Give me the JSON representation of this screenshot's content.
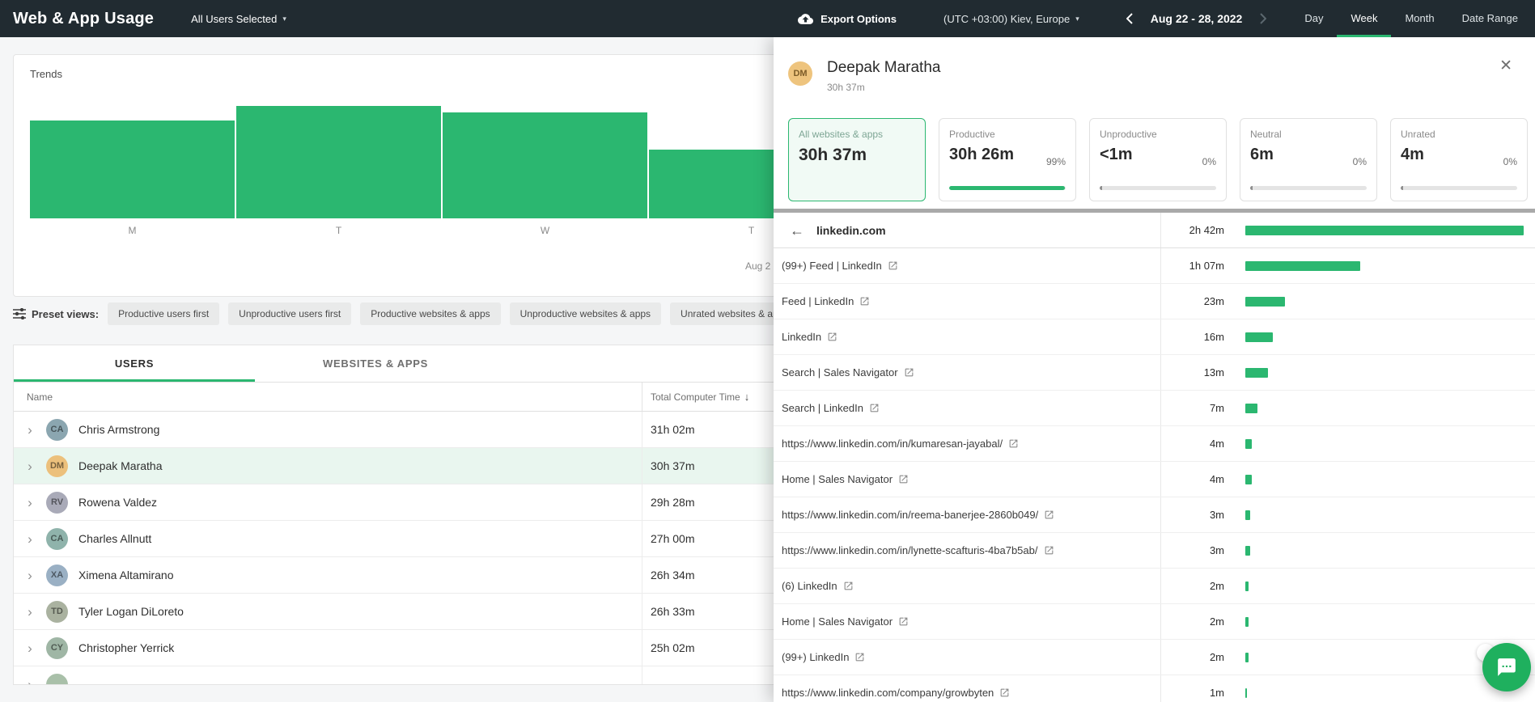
{
  "colors": {
    "accent_green": "#2bb770",
    "topbar_bg": "#212b31",
    "selected_row_bg": "#e9f6ef"
  },
  "topbar": {
    "title": "Web & App Usage",
    "users_dropdown": "All Users Selected",
    "export_label": "Export Options",
    "timezone": "(UTC +03:00) Kiev, Europe",
    "date_range": "Aug 22 - 28, 2022",
    "tabs": [
      {
        "label": "Day",
        "active": false
      },
      {
        "label": "Week",
        "active": true
      },
      {
        "label": "Month",
        "active": false
      },
      {
        "label": "Date Range",
        "active": false
      }
    ]
  },
  "trends": {
    "title": "Trends"
  },
  "chart_data": {
    "type": "bar",
    "title": "Trends",
    "categories": [
      "M",
      "T",
      "W",
      "T"
    ],
    "values_pct_of_max": [
      87,
      100,
      94,
      61
    ],
    "partial_date_label": "Aug 2",
    "color": "#2bb770",
    "xlabel": "",
    "ylabel": "",
    "legend": false,
    "grid": false,
    "note": "Daily usage bars for week Aug 22-28 2022; y-axis and remaining days hidden behind the detail panel, values estimated as percent of tallest visible bar (Tuesday)"
  },
  "preset": {
    "label": "Preset views:",
    "chips": [
      "Productive users first",
      "Unproductive users first",
      "Productive websites & apps",
      "Unproductive websites & apps",
      "Unrated websites & apps"
    ]
  },
  "table": {
    "tabs": [
      {
        "label": "USERS",
        "active": true
      },
      {
        "label": "WEBSITES & APPS",
        "active": false
      }
    ],
    "columns": {
      "name": "Name",
      "time": "Total Computer Time"
    },
    "rows": [
      {
        "initials": "CA",
        "name": "Chris Armstrong",
        "time": "31h 02m",
        "selected": false,
        "avatar_color": "#8ba6b0"
      },
      {
        "initials": "DM",
        "name": "Deepak Maratha",
        "time": "30h 37m",
        "selected": true,
        "avatar_color": "#ecc07c"
      },
      {
        "initials": "RV",
        "name": "Rowena Valdez",
        "time": "29h 28m",
        "selected": false,
        "avatar_color": "#a9aab8"
      },
      {
        "initials": "CA",
        "name": "Charles Allnutt",
        "time": "27h 00m",
        "selected": false,
        "avatar_color": "#8fb3ab"
      },
      {
        "initials": "XA",
        "name": "Ximena Altamirano",
        "time": "26h 34m",
        "selected": false,
        "avatar_color": "#9ab0c4"
      },
      {
        "initials": "TD",
        "name": "Tyler Logan DiLoreto",
        "time": "26h 33m",
        "selected": false,
        "avatar_color": "#aab2a0"
      },
      {
        "initials": "CY",
        "name": "Christopher Yerrick",
        "time": "25h 02m",
        "selected": false,
        "avatar_color": "#9fb6a5"
      },
      {
        "initials": "",
        "name": "",
        "time": "",
        "selected": false,
        "avatar_color": "#a9c0a9"
      }
    ]
  },
  "panel": {
    "user": {
      "initials": "DM",
      "name": "Deepak Maratha",
      "total": "30h 37m"
    },
    "cards": [
      {
        "label": "All websites & apps",
        "value": "30h 37m",
        "pct": null,
        "style": "selected",
        "has_bar": false,
        "tick": false,
        "fill": 0
      },
      {
        "label": "Productive",
        "value": "30h 26m",
        "pct": "99%",
        "style": "green",
        "has_bar": true,
        "tick": false,
        "fill": 99
      },
      {
        "label": "Unproductive",
        "value": "<1m",
        "pct": "0%",
        "style": "tick",
        "has_bar": true,
        "tick": true,
        "fill": 0
      },
      {
        "label": "Neutral",
        "value": "6m",
        "pct": "0%",
        "style": "tick",
        "has_bar": true,
        "tick": true,
        "fill": 0
      },
      {
        "label": "Unrated",
        "value": "4m",
        "pct": "0%",
        "style": "tick",
        "has_bar": true,
        "tick": true,
        "fill": 0
      }
    ],
    "detail": {
      "site": "linkedin.com",
      "site_time": "2h 42m",
      "site_minutes": 162,
      "rows": [
        {
          "label": "(99+) Feed | LinkedIn",
          "time": "1h 07m",
          "minutes": 67
        },
        {
          "label": "Feed | LinkedIn",
          "time": "23m",
          "minutes": 23
        },
        {
          "label": "LinkedIn",
          "time": "16m",
          "minutes": 16
        },
        {
          "label": "Search | Sales Navigator",
          "time": "13m",
          "minutes": 13
        },
        {
          "label": "Search | LinkedIn",
          "time": "7m",
          "minutes": 7
        },
        {
          "label": "https://www.linkedin.com/in/kumaresan-jayabal/",
          "time": "4m",
          "minutes": 4
        },
        {
          "label": "Home | Sales Navigator",
          "time": "4m",
          "minutes": 4
        },
        {
          "label": "https://www.linkedin.com/in/reema-banerjee-2860b049/",
          "time": "3m",
          "minutes": 3
        },
        {
          "label": "https://www.linkedin.com/in/lynette-scafturis-4ba7b5ab/",
          "time": "3m",
          "minutes": 3
        },
        {
          "label": "(6) LinkedIn",
          "time": "2m",
          "minutes": 2
        },
        {
          "label": "Home | Sales Navigator",
          "time": "2m",
          "minutes": 2
        },
        {
          "label": "(99+) LinkedIn",
          "time": "2m",
          "minutes": 2
        },
        {
          "label": "https://www.linkedin.com/company/growbyten",
          "time": "1m",
          "minutes": 1
        }
      ]
    }
  }
}
